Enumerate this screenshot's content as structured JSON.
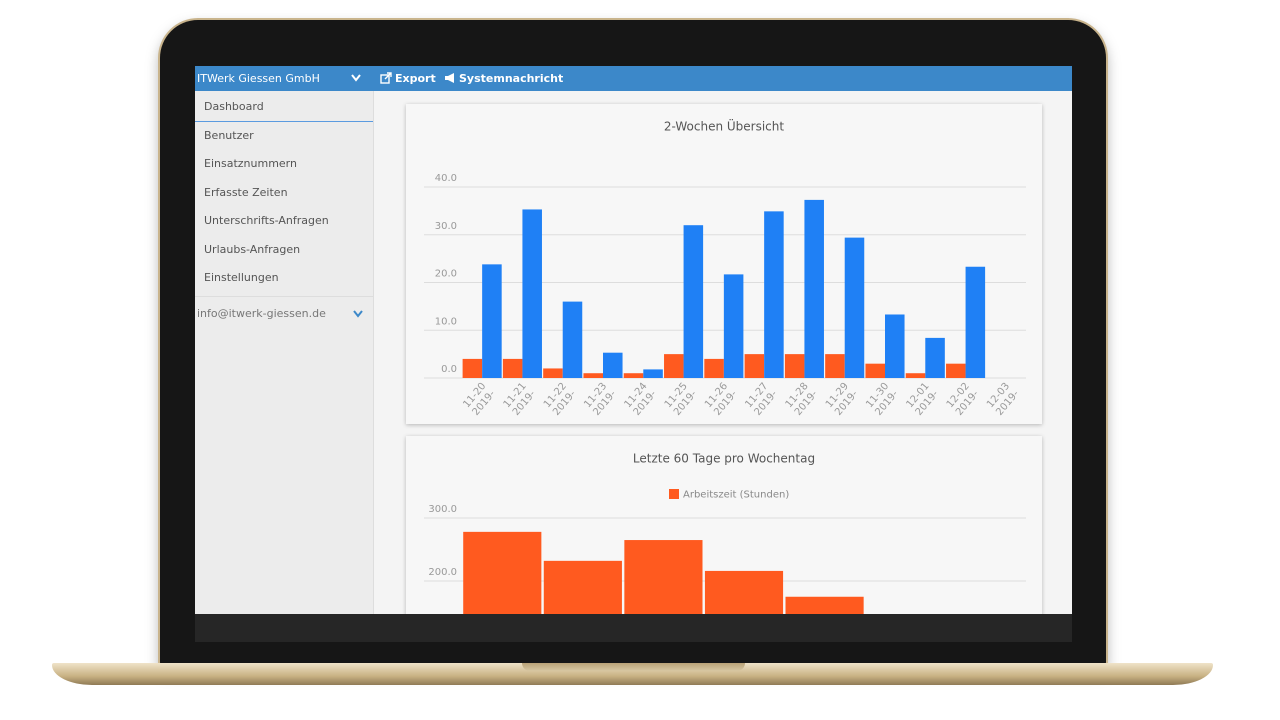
{
  "sidebar": {
    "company": "ITWerk Giessen GmbH",
    "menu": [
      "Dashboard",
      "Benutzer",
      "Einsatznummern",
      "Erfasste Zeiten",
      "Unterschrifts-Anfragen",
      "Urlaubs-Anfragen",
      "Einstellungen"
    ],
    "user": "info@itwerk-giessen.de"
  },
  "toolbar": {
    "buttons": [
      "Export",
      "Systemnachricht"
    ]
  },
  "chart_data": [
    {
      "type": "bar",
      "title": "2-Wochen Übersicht",
      "categories": [
        "11-20 2019-",
        "11-21 2019-",
        "11-22 2019-",
        "11-23 2019-",
        "11-24 2019-",
        "11-25 2019-",
        "11-26 2019-",
        "11-27 2019-",
        "11-28 2019-",
        "11-29 2019-",
        "11-30 2019-",
        "12-01 2019-",
        "12-02 2019-",
        "12-03 2019-"
      ],
      "series": [
        {
          "color": "#ff5a1f",
          "values": [
            4,
            4,
            2,
            1,
            1,
            5,
            4,
            5,
            5,
            5,
            3,
            1,
            3,
            null
          ]
        },
        {
          "color": "#1f80f5",
          "values": [
            23.8,
            35.3,
            16,
            5.3,
            1.8,
            32,
            21.7,
            34.9,
            37.3,
            29.4,
            13.3,
            8.4,
            23.3,
            null
          ]
        }
      ],
      "ylim": [
        0,
        40
      ],
      "yticks": [
        {
          "value": 0,
          "label": "0.0"
        },
        {
          "value": 10,
          "label": "10.0"
        },
        {
          "value": 20,
          "label": "20.0"
        },
        {
          "value": 30,
          "label": "30.0"
        },
        {
          "value": 40,
          "label": "40.0"
        }
      ],
      "grid": true
    },
    {
      "type": "bar",
      "title": "Letzte 60 Tage pro Wochentag",
      "categories": [
        null,
        null,
        null,
        null,
        null,
        null,
        null
      ],
      "series": [
        {
          "name": "Arbeitszeit (Stunden)",
          "color": "#ff5a1f",
          "values": [
            278,
            232,
            265,
            216,
            175,
            null,
            null
          ]
        }
      ],
      "ylim": [
        0,
        300
      ],
      "yticks": [
        {
          "value": 200,
          "label": "200.0"
        },
        {
          "value": 300,
          "label": "300.0"
        }
      ],
      "grid": true,
      "legend": "top"
    }
  ]
}
